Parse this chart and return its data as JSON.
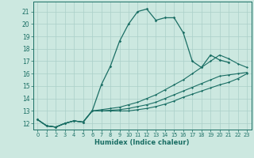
{
  "xlabel": "Humidex (Indice chaleur)",
  "ylabel": "",
  "xlim": [
    -0.5,
    23.5
  ],
  "ylim": [
    11.5,
    21.8
  ],
  "xticks": [
    0,
    1,
    2,
    3,
    4,
    5,
    6,
    7,
    8,
    9,
    10,
    11,
    12,
    13,
    14,
    15,
    16,
    17,
    18,
    19,
    20,
    21,
    22,
    23
  ],
  "yticks": [
    12,
    13,
    14,
    15,
    16,
    17,
    18,
    19,
    20,
    21
  ],
  "bg_color": "#cce8e0",
  "grid_color": "#aacfc8",
  "line_color": "#1a6e64",
  "curves": [
    {
      "x": [
        0,
        1,
        2,
        3,
        4,
        5,
        6,
        7,
        8,
        9,
        10,
        11,
        12,
        13,
        14,
        15,
        16,
        17,
        18,
        19,
        20,
        21
      ],
      "y": [
        12.3,
        11.8,
        11.7,
        12.0,
        12.2,
        12.1,
        13.0,
        15.1,
        16.6,
        18.6,
        20.0,
        21.0,
        21.2,
        20.3,
        20.5,
        20.5,
        19.3,
        17.0,
        16.5,
        17.5,
        17.1,
        16.9
      ]
    },
    {
      "x": [
        0,
        1,
        2,
        3,
        4,
        5,
        6,
        7,
        8,
        9,
        10,
        11,
        12,
        13,
        14,
        15,
        16,
        17,
        18,
        19,
        20,
        21,
        22,
        23
      ],
      "y": [
        12.3,
        11.8,
        11.7,
        12.0,
        12.2,
        12.1,
        13.0,
        13.1,
        13.2,
        13.3,
        13.5,
        13.7,
        14.0,
        14.3,
        14.7,
        15.1,
        15.5,
        16.0,
        16.5,
        17.0,
        17.5,
        17.2,
        16.8,
        16.5
      ]
    },
    {
      "x": [
        0,
        1,
        2,
        3,
        4,
        5,
        6,
        7,
        8,
        9,
        10,
        11,
        12,
        13,
        14,
        15,
        16,
        17,
        18,
        19,
        20,
        21,
        22,
        23
      ],
      "y": [
        12.3,
        11.8,
        11.7,
        12.0,
        12.2,
        12.1,
        13.0,
        13.0,
        13.05,
        13.1,
        13.2,
        13.35,
        13.5,
        13.7,
        14.0,
        14.3,
        14.6,
        14.9,
        15.2,
        15.5,
        15.8,
        15.9,
        16.0,
        16.1
      ]
    },
    {
      "x": [
        0,
        1,
        2,
        3,
        4,
        5,
        6,
        7,
        8,
        9,
        10,
        11,
        12,
        13,
        14,
        15,
        16,
        17,
        18,
        19,
        20,
        21,
        22,
        23
      ],
      "y": [
        12.3,
        11.8,
        11.7,
        12.0,
        12.2,
        12.1,
        13.0,
        13.0,
        13.0,
        13.0,
        13.0,
        13.1,
        13.2,
        13.35,
        13.55,
        13.8,
        14.1,
        14.35,
        14.6,
        14.85,
        15.1,
        15.3,
        15.6,
        16.0
      ]
    }
  ]
}
